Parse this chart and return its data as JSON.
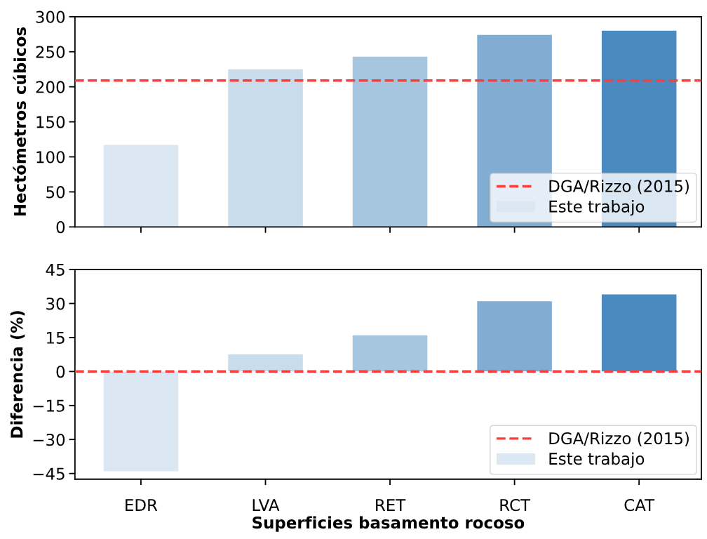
{
  "chart_data": [
    {
      "type": "bar",
      "ylabel": "Hectómetros cúbicos",
      "categories": [
        null,
        null,
        null,
        null,
        null
      ],
      "series": [
        {
          "name": "Este trabajo",
          "colors": [
            "#dbe7f2",
            "#c8dcec",
            "#a6c5df",
            "#81add3",
            "#4a8abe"
          ],
          "values": [
            117,
            225,
            243,
            274,
            280
          ]
        }
      ],
      "ylim": [
        0,
        300
      ],
      "yticks": [
        0,
        50,
        100,
        150,
        200,
        250,
        300
      ],
      "ref_lines": [
        {
          "axis": "y",
          "value": 209,
          "label": "DGA/Rizzo (2015)",
          "color": "#ff3c3c",
          "line_style": "dashed"
        }
      ],
      "legend": "bottom right",
      "tick_labels": "y"
    },
    {
      "type": "bar",
      "ylabel": "Diferencia (%)",
      "xlabel": "Superficies basamento rocoso",
      "categories": [
        "EDR",
        "LVA",
        "RET",
        "RCT",
        "CAT"
      ],
      "series": [
        {
          "name": "Este trabajo",
          "colors": [
            "#dbe7f2",
            "#c8dcec",
            "#a6c5df",
            "#81add3",
            "#4a8abe"
          ],
          "values": [
            -44,
            7.5,
            16,
            31,
            34
          ]
        }
      ],
      "ylim": [
        -47.5,
        45
      ],
      "yticks": [
        {
          "value": -45,
          "label": "−45"
        },
        {
          "value": -30,
          "label": "−30"
        },
        {
          "value": -15,
          "label": "−15"
        },
        0,
        15,
        30,
        45
      ],
      "ref_lines": [
        {
          "axis": "y",
          "value": 0,
          "label": "DGA/Rizzo (2015)",
          "color": "#ff3c3c",
          "line_style": "dashed"
        }
      ],
      "legend": "bottom right"
    }
  ]
}
